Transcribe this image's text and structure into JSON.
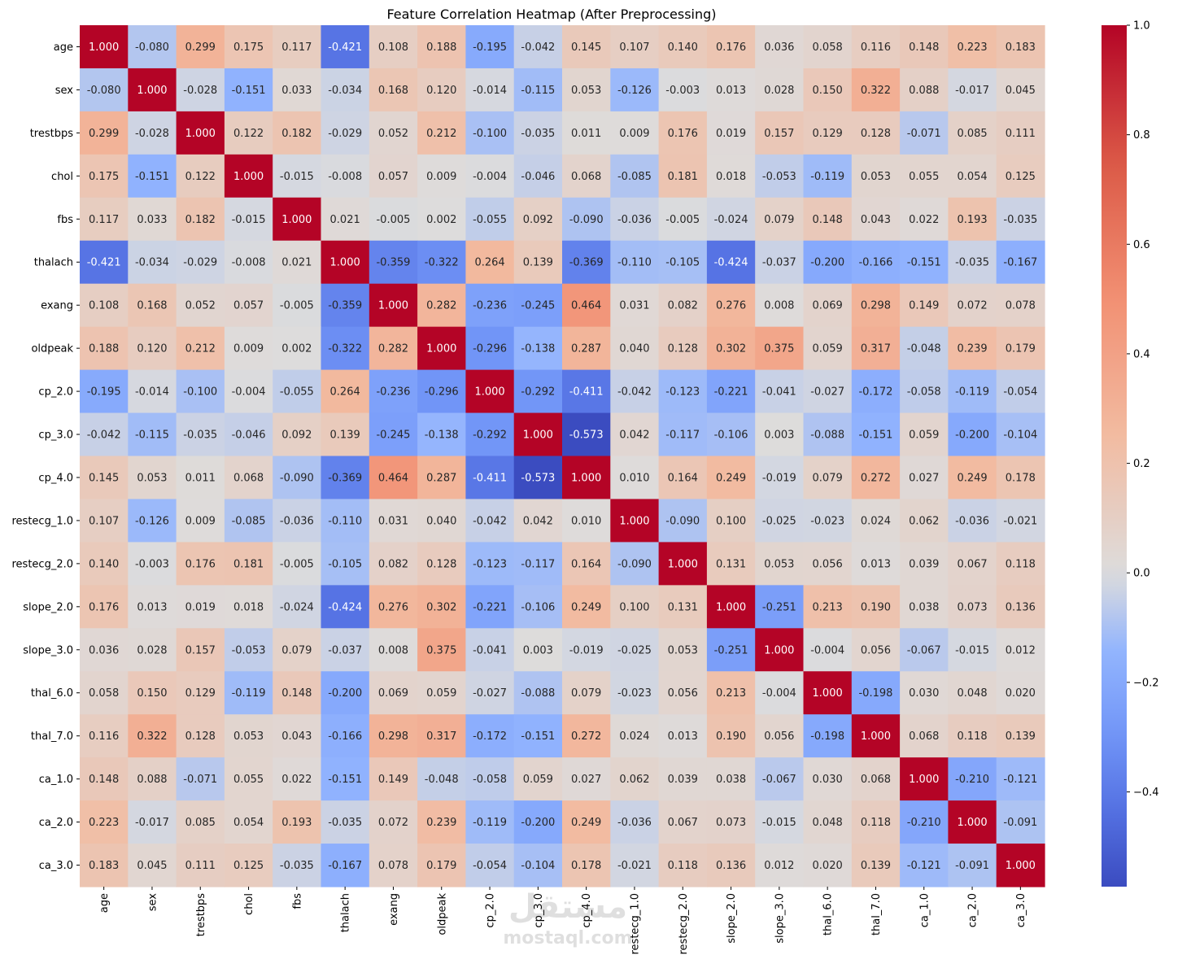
{
  "chart_data": {
    "type": "heatmap",
    "title": "Feature Correlation Heatmap (After Preprocessing)",
    "xlabel": "",
    "ylabel": "",
    "labels": [
      "age",
      "sex",
      "trestbps",
      "chol",
      "fbs",
      "thalach",
      "exang",
      "oldpeak",
      "cp_2.0",
      "cp_3.0",
      "cp_4.0",
      "restecg_1.0",
      "restecg_2.0",
      "slope_2.0",
      "slope_3.0",
      "thal_6.0",
      "thal_7.0",
      "ca_1.0",
      "ca_2.0",
      "ca_3.0"
    ],
    "values": [
      [
        1.0,
        -0.08,
        0.299,
        0.175,
        0.117,
        -0.421,
        0.108,
        0.188,
        -0.195,
        -0.042,
        0.145,
        0.107,
        0.14,
        0.176,
        0.036,
        0.058,
        0.116,
        0.148,
        0.223,
        0.183
      ],
      [
        -0.08,
        1.0,
        -0.028,
        -0.151,
        0.033,
        -0.034,
        0.168,
        0.12,
        -0.014,
        -0.115,
        0.053,
        -0.126,
        -0.003,
        0.013,
        0.028,
        0.15,
        0.322,
        0.088,
        -0.017,
        0.045
      ],
      [
        0.299,
        -0.028,
        1.0,
        0.122,
        0.182,
        -0.029,
        0.052,
        0.212,
        -0.1,
        -0.035,
        0.011,
        0.009,
        0.176,
        0.019,
        0.157,
        0.129,
        0.128,
        -0.071,
        0.085,
        0.111
      ],
      [
        0.175,
        -0.151,
        0.122,
        1.0,
        -0.015,
        -0.008,
        0.057,
        0.009,
        -0.004,
        -0.046,
        0.068,
        -0.085,
        0.181,
        0.018,
        -0.053,
        -0.119,
        0.053,
        0.055,
        0.054,
        0.125
      ],
      [
        0.117,
        0.033,
        0.182,
        -0.015,
        1.0,
        0.021,
        -0.005,
        0.002,
        -0.055,
        0.092,
        -0.09,
        -0.036,
        -0.005,
        -0.024,
        0.079,
        0.148,
        0.043,
        0.022,
        0.193,
        -0.035
      ],
      [
        -0.421,
        -0.034,
        -0.029,
        -0.008,
        0.021,
        1.0,
        -0.359,
        -0.322,
        0.264,
        0.139,
        -0.369,
        -0.11,
        -0.105,
        -0.424,
        -0.037,
        -0.2,
        -0.166,
        -0.151,
        -0.035,
        -0.167
      ],
      [
        0.108,
        0.168,
        0.052,
        0.057,
        -0.005,
        -0.359,
        1.0,
        0.282,
        -0.236,
        -0.245,
        0.464,
        0.031,
        0.082,
        0.276,
        0.008,
        0.069,
        0.298,
        0.149,
        0.072,
        0.078
      ],
      [
        0.188,
        0.12,
        0.212,
        0.009,
        0.002,
        -0.322,
        0.282,
        1.0,
        -0.296,
        -0.138,
        0.287,
        0.04,
        0.128,
        0.302,
        0.375,
        0.059,
        0.317,
        -0.048,
        0.239,
        0.179
      ],
      [
        -0.195,
        -0.014,
        -0.1,
        -0.004,
        -0.055,
        0.264,
        -0.236,
        -0.296,
        1.0,
        -0.292,
        -0.411,
        -0.042,
        -0.123,
        -0.221,
        -0.041,
        -0.027,
        -0.172,
        -0.058,
        -0.119,
        -0.054
      ],
      [
        -0.042,
        -0.115,
        -0.035,
        -0.046,
        0.092,
        0.139,
        -0.245,
        -0.138,
        -0.292,
        1.0,
        -0.573,
        0.042,
        -0.117,
        -0.106,
        0.003,
        -0.088,
        -0.151,
        0.059,
        -0.2,
        -0.104
      ],
      [
        0.145,
        0.053,
        0.011,
        0.068,
        -0.09,
        -0.369,
        0.464,
        0.287,
        -0.411,
        -0.573,
        1.0,
        0.01,
        0.164,
        0.249,
        -0.019,
        0.079,
        0.272,
        0.027,
        0.249,
        0.178
      ],
      [
        0.107,
        -0.126,
        0.009,
        -0.085,
        -0.036,
        -0.11,
        0.031,
        0.04,
        -0.042,
        0.042,
        0.01,
        1.0,
        -0.09,
        0.1,
        -0.025,
        -0.023,
        0.024,
        0.062,
        -0.036,
        -0.021
      ],
      [
        0.14,
        -0.003,
        0.176,
        0.181,
        -0.005,
        -0.105,
        0.082,
        0.128,
        -0.123,
        -0.117,
        0.164,
        -0.09,
        1.0,
        0.131,
        0.053,
        0.056,
        0.013,
        0.039,
        0.067,
        0.118
      ],
      [
        0.176,
        0.013,
        0.019,
        0.018,
        -0.024,
        -0.424,
        0.276,
        0.302,
        -0.221,
        -0.106,
        0.249,
        0.1,
        0.131,
        1.0,
        -0.251,
        0.213,
        0.19,
        0.038,
        0.073,
        0.136
      ],
      [
        0.036,
        0.028,
        0.157,
        -0.053,
        0.079,
        -0.037,
        0.008,
        0.375,
        -0.041,
        0.003,
        -0.019,
        -0.025,
        0.053,
        -0.251,
        1.0,
        -0.004,
        0.056,
        -0.067,
        -0.015,
        0.012
      ],
      [
        0.058,
        0.15,
        0.129,
        -0.119,
        0.148,
        -0.2,
        0.069,
        0.059,
        -0.027,
        -0.088,
        0.079,
        -0.023,
        0.056,
        0.213,
        -0.004,
        1.0,
        -0.198,
        0.03,
        0.048,
        0.02
      ],
      [
        0.116,
        0.322,
        0.128,
        0.053,
        0.043,
        -0.166,
        0.298,
        0.317,
        -0.172,
        -0.151,
        0.272,
        0.024,
        0.013,
        0.19,
        0.056,
        -0.198,
        1.0,
        0.068,
        0.118,
        0.139
      ],
      [
        0.148,
        0.088,
        -0.071,
        0.055,
        0.022,
        -0.151,
        0.149,
        -0.048,
        -0.058,
        0.059,
        0.027,
        0.062,
        0.039,
        0.038,
        -0.067,
        0.03,
        0.068,
        1.0,
        -0.21,
        -0.121
      ],
      [
        0.223,
        -0.017,
        0.085,
        0.054,
        0.193,
        -0.035,
        0.072,
        0.239,
        -0.119,
        -0.2,
        0.249,
        -0.036,
        0.067,
        0.073,
        -0.015,
        0.048,
        0.118,
        -0.21,
        1.0,
        -0.091
      ],
      [
        0.183,
        0.045,
        0.111,
        0.125,
        -0.035,
        -0.167,
        0.078,
        0.179,
        -0.054,
        -0.104,
        0.178,
        -0.021,
        0.118,
        0.136,
        0.012,
        0.02,
        0.139,
        -0.121,
        -0.091,
        1.0
      ]
    ],
    "value_format_decimals": 3,
    "colormap": "coolwarm",
    "color_range": [
      -0.573,
      1.0
    ],
    "colormap_center": 0.0,
    "colorbar": {
      "ticks": [
        -0.4,
        -0.2,
        0.0,
        0.2,
        0.4,
        0.6,
        0.8,
        1.0
      ],
      "tick_labels": [
        "−0.4",
        "−0.2",
        "0.0",
        "0.2",
        "0.4",
        "0.6",
        "0.8",
        "1.0"
      ],
      "position": "right"
    },
    "grid": false
  },
  "watermark": {
    "arabic": "مستقل",
    "latin": "mostaql.com"
  },
  "colors": {
    "cold": "#3b4cc0",
    "neutral": "#dddcdc",
    "warm": "#b40426"
  }
}
